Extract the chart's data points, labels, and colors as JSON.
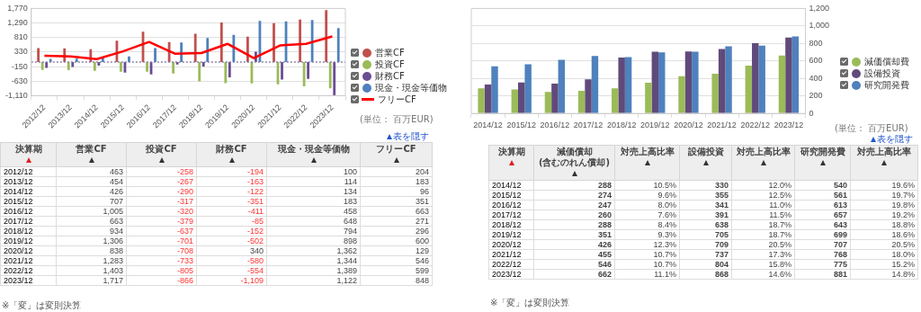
{
  "chart_data": [
    {
      "type": "bar",
      "categories": [
        "2012/12",
        "2013/12",
        "2014/12",
        "2015/12",
        "2016/12",
        "2017/12",
        "2018/12",
        "2019/12",
        "2020/12",
        "2021/12",
        "2022/12",
        "2023/12"
      ],
      "series": [
        {
          "name": "営業CF",
          "color": "#c0504d",
          "values": [
            463,
            454,
            426,
            707,
            1005,
            663,
            934,
            1306,
            838,
            1283,
            1403,
            1717
          ]
        },
        {
          "name": "投資CF",
          "color": "#9bbb59",
          "values": [
            -258,
            -267,
            -290,
            -317,
            -320,
            -379,
            -637,
            -701,
            -708,
            -733,
            -805,
            -866
          ]
        },
        {
          "name": "財務CF",
          "color": "#6a4c93",
          "values": [
            -194,
            -163,
            -122,
            -351,
            -411,
            -85,
            -152,
            -502,
            340,
            -580,
            -554,
            -1109
          ]
        },
        {
          "name": "現金・現金等価物",
          "color": "#4f81bd",
          "values": [
            100,
            114,
            134,
            183,
            458,
            648,
            794,
            898,
            1362,
            1344,
            1389,
            1122
          ]
        },
        {
          "name": "フリーCF",
          "type": "line",
          "color": "#ff0000",
          "values": [
            204,
            183,
            96,
            351,
            663,
            271,
            296,
            600,
            129,
            546,
            599,
            848
          ]
        }
      ],
      "ylim": [
        -1110,
        1770
      ],
      "yticks": [
        {
          "value": -1110,
          "label": "-1,110"
        },
        -630,
        -150,
        330,
        810,
        {
          "value": 1290,
          "label": "1,290"
        },
        {
          "value": 1770,
          "label": "1,770"
        }
      ],
      "grid": "y",
      "legend": "right",
      "ref_lines": [
        {
          "axis": "y",
          "value": 0,
          "line_style": "dotted",
          "color": "#8a80aa"
        }
      ],
      "annotations": [
        "(単位： 百万EUR)"
      ]
    },
    {
      "type": "bar",
      "categories": [
        "2014/12",
        "2015/12",
        "2016/12",
        "2017/12",
        "2018/12",
        "2019/12",
        "2020/12",
        "2021/12",
        "2022/12",
        "2023/12"
      ],
      "series": [
        {
          "name": "減価償却費",
          "color": "#9bbb59",
          "values": [
            288,
            274,
            247,
            260,
            288,
            351,
            426,
            455,
            546,
            662
          ]
        },
        {
          "name": "設備投資",
          "color": "#604a7b",
          "values": [
            330,
            355,
            341,
            391,
            638,
            705,
            709,
            737,
            804,
            868
          ]
        },
        {
          "name": "研究開発費",
          "color": "#4f81bd",
          "values": [
            540,
            561,
            613,
            657,
            643,
            699,
            707,
            768,
            775,
            881
          ]
        }
      ],
      "ylim": [
        0,
        1200
      ],
      "yticks": [
        0,
        200,
        400,
        600,
        800,
        {
          "value": 1000,
          "label": "1,000"
        },
        {
          "value": 1200,
          "label": "1,200"
        }
      ],
      "grid": "y",
      "legend": "right",
      "annotations": [
        "(単位： 百万EUR)"
      ]
    },
    {
      "type": "other",
      "categories": [
        "2012/12",
        "2013/12",
        "2014/12",
        "2015/12",
        "2016/12",
        "2017/12",
        "2018/12",
        "2019/12",
        "2020/12",
        "2021/12",
        "2022/12",
        "2023/12"
      ],
      "series": [
        {
          "name": "営業CF",
          "values": [
            463,
            454,
            426,
            707,
            1005,
            663,
            934,
            1306,
            838,
            1283,
            1403,
            1717
          ],
          "value_labels": [
            "463",
            "454",
            "426",
            "707",
            "1,005",
            "663",
            "934",
            "1,306",
            "838",
            "1,283",
            "1,403",
            "1,717"
          ]
        },
        {
          "name": "投資CF",
          "values": [
            -258,
            -267,
            -290,
            -317,
            -320,
            -379,
            -637,
            -701,
            -708,
            -733,
            -805,
            -866
          ]
        },
        {
          "name": "財務CF",
          "values": [
            -194,
            -163,
            -122,
            -351,
            -411,
            -85,
            -152,
            -502,
            340,
            -580,
            -554,
            -1109
          ],
          "value_labels": [
            "-194",
            "-163",
            "-122",
            "-351",
            "-411",
            "-85",
            "-152",
            "-502",
            "340",
            "-580",
            "-554",
            "-1,109"
          ]
        },
        {
          "name": "現金・現金等価物",
          "values": [
            100,
            114,
            134,
            183,
            458,
            648,
            794,
            898,
            1362,
            1344,
            1389,
            1122
          ],
          "value_labels": [
            "100",
            "114",
            "134",
            "183",
            "458",
            "648",
            "794",
            "898",
            "1,362",
            "1,344",
            "1,389",
            "1,122"
          ]
        },
        {
          "name": "フリーCF",
          "values": [
            204,
            183,
            96,
            351,
            663,
            271,
            296,
            600,
            129,
            546,
            599,
            848
          ]
        }
      ],
      "data_labels": true,
      "annotations": [
        "決算期",
        "表を隠す",
        "※「変」は変則決算"
      ]
    },
    {
      "type": "other",
      "categories": [
        "2014/12",
        "2015/12",
        "2016/12",
        "2017/12",
        "2018/12",
        "2019/12",
        "2020/12",
        "2021/12",
        "2022/12",
        "2023/12"
      ],
      "series": [
        {
          "name": "減価償却\n(含むのれん償却)",
          "values": [
            288,
            274,
            247,
            260,
            288,
            351,
            426,
            455,
            546,
            662
          ]
        },
        {
          "name": "対売上高比率",
          "values": [
            10.5,
            9.6,
            8.0,
            7.6,
            8.4,
            9.3,
            12.3,
            10.7,
            10.7,
            11.1
          ],
          "value_labels": [
            "10.5%",
            "9.6%",
            "8.0%",
            "7.6%",
            "8.4%",
            "9.3%",
            "12.3%",
            "10.7%",
            "10.7%",
            "11.1%"
          ]
        },
        {
          "name": "設備投資",
          "values": [
            330,
            355,
            341,
            391,
            638,
            705,
            709,
            737,
            804,
            868
          ]
        },
        {
          "name": "対売上高比率",
          "values": [
            12.0,
            12.5,
            11.0,
            11.5,
            18.7,
            18.7,
            20.5,
            17.3,
            15.8,
            14.6
          ],
          "value_labels": [
            "12.0%",
            "12.5%",
            "11.0%",
            "11.5%",
            "18.7%",
            "18.7%",
            "20.5%",
            "17.3%",
            "15.8%",
            "14.6%"
          ]
        },
        {
          "name": "研究開発費",
          "values": [
            540,
            561,
            613,
            657,
            643,
            699,
            707,
            768,
            775,
            881
          ]
        },
        {
          "name": "対売上高比率",
          "values": [
            19.6,
            19.7,
            19.8,
            19.2,
            18.8,
            18.6,
            20.5,
            18.0,
            15.2,
            14.8
          ],
          "value_labels": [
            "19.6%",
            "19.7%",
            "19.8%",
            "19.2%",
            "18.8%",
            "18.6%",
            "20.5%",
            "18.0%",
            "15.2%",
            "14.8%"
          ]
        }
      ],
      "data_labels": true,
      "annotations": [
        "決算期",
        "表を隠す",
        "※「変」は変則決算"
      ]
    }
  ]
}
